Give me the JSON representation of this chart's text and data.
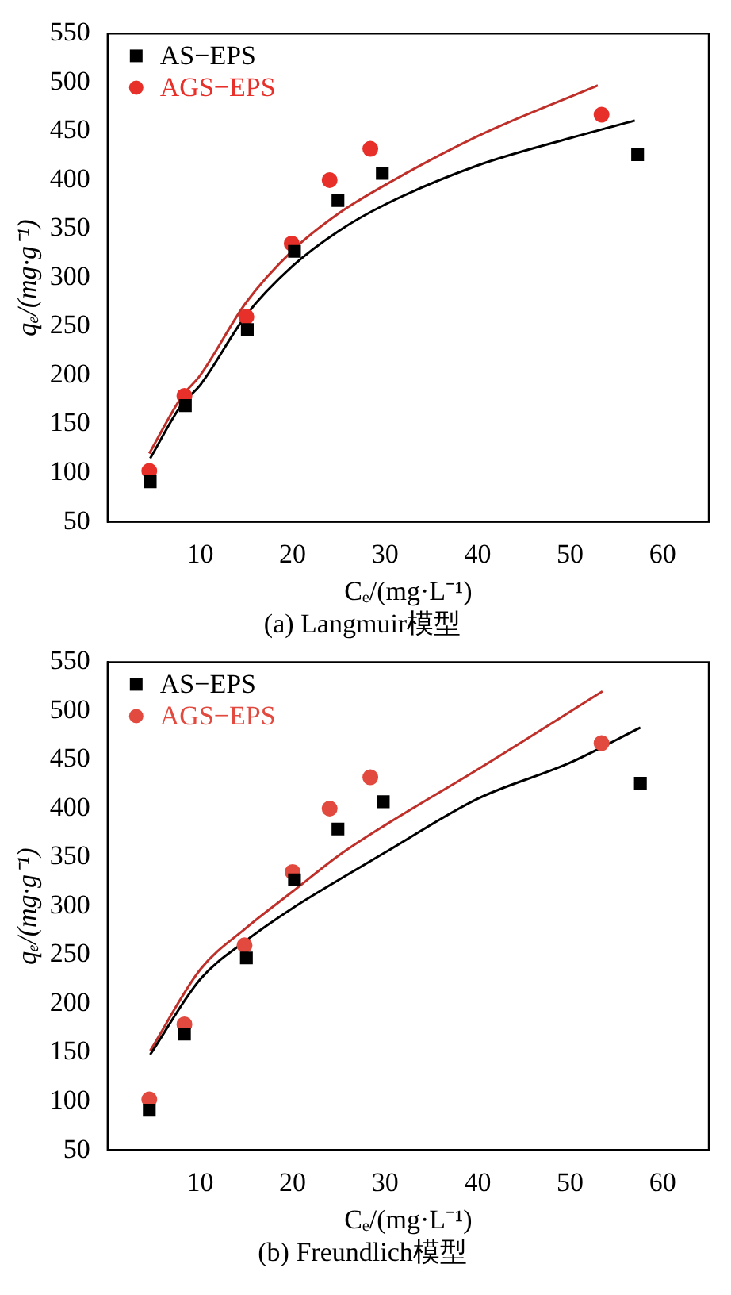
{
  "chart_data": [
    {
      "type": "scatter",
      "title": "(a) Langmuir模型",
      "xlabel": "Cₑ/(mg·L⁻¹)",
      "ylabel": "qₑ/(mg·g⁻¹)",
      "xlim": [
        0,
        65
      ],
      "xticks": [
        10,
        20,
        30,
        40,
        50,
        60
      ],
      "ylim": [
        50,
        550
      ],
      "yticks": [
        50,
        100,
        150,
        200,
        250,
        300,
        350,
        400,
        450,
        500,
        550
      ],
      "legend": "top left",
      "grid": false,
      "series": [
        {
          "name": "AS−EPS",
          "marker": "square",
          "color": "#000000",
          "x": [
            4.6,
            8.4,
            15.1,
            20.2,
            24.9,
            29.7,
            57.3
          ],
          "values": [
            91,
            169,
            247,
            327,
            379,
            407,
            426
          ]
        },
        {
          "name": "AGS−EPS",
          "marker": "circle",
          "color": "#e8302a",
          "x": [
            4.5,
            8.3,
            15.0,
            19.9,
            24.0,
            28.4,
            53.4
          ],
          "values": [
            102,
            179,
            260,
            335,
            400,
            432,
            467
          ]
        },
        {
          "type": "line",
          "marker": "none",
          "color": "#000000",
          "x": [
            4.6,
            8,
            10,
            15,
            20,
            25,
            30,
            40,
            50,
            57
          ],
          "values": [
            115,
            170,
            190,
            262,
            312,
            348,
            375,
            415,
            443,
            461
          ]
        },
        {
          "type": "line",
          "marker": "none",
          "color": "#c0302a",
          "x": [
            4.5,
            8,
            10,
            15,
            20,
            25,
            30,
            40,
            53
          ],
          "values": [
            120,
            178,
            200,
            275,
            328,
            366,
            395,
            445,
            497
          ]
        }
      ]
    },
    {
      "type": "scatter",
      "title": "(b) Freundlich模型",
      "xlabel": "Cₑ/(mg·L⁻¹)",
      "ylabel": "qₑ/(mg·g⁻¹)",
      "xlim": [
        0,
        65
      ],
      "xticks": [
        10,
        20,
        30,
        40,
        50,
        60
      ],
      "ylim": [
        50,
        550
      ],
      "yticks": [
        50,
        100,
        150,
        200,
        250,
        300,
        350,
        400,
        450,
        500,
        550
      ],
      "legend": "top left",
      "grid": false,
      "series": [
        {
          "name": "AS−EPS",
          "marker": "square",
          "color": "#000000",
          "x": [
            4.5,
            8.3,
            15.0,
            20.2,
            24.9,
            29.8,
            57.6
          ],
          "values": [
            91,
            169,
            247,
            327,
            379,
            407,
            426
          ]
        },
        {
          "name": "AGS−EPS",
          "marker": "circle",
          "color": "#e24a3f",
          "x": [
            4.5,
            8.3,
            14.8,
            20.0,
            24.0,
            28.4,
            53.4
          ],
          "values": [
            102,
            179,
            260,
            335,
            400,
            432,
            467
          ]
        },
        {
          "type": "line",
          "marker": "none",
          "color": "#000000",
          "x": [
            4.6,
            10,
            15,
            20,
            25,
            30,
            40,
            50,
            57.6
          ],
          "values": [
            148,
            225,
            265,
            298,
            327,
            355,
            410,
            447,
            483
          ]
        },
        {
          "type": "line",
          "marker": "none",
          "color": "#c0302a",
          "x": [
            4.6,
            10,
            15,
            20,
            25,
            30,
            40,
            53.5
          ],
          "values": [
            152,
            235,
            278,
            315,
            352,
            383,
            440,
            520
          ]
        }
      ]
    }
  ]
}
